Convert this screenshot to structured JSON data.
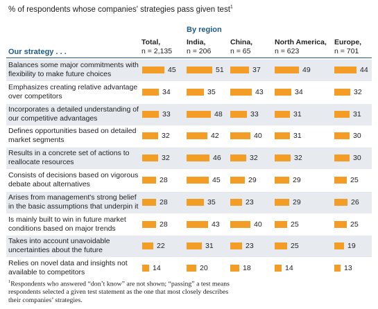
{
  "chart_data": {
    "type": "bar",
    "title": "% of respondents whose companies' strategies pass given test",
    "title_footnote_mark": "1",
    "region_header": "By region",
    "row_header": "Our strategy . . .",
    "columns": [
      {
        "name": "Total,",
        "n": "n = 2,135"
      },
      {
        "name": "India,",
        "n": "n = 206"
      },
      {
        "name": "China,",
        "n": "n = 65"
      },
      {
        "name": "North America,",
        "n": "n = 623"
      },
      {
        "name": "Europe,",
        "n": "n = 701"
      }
    ],
    "rows": [
      {
        "label": "Balances some major commitments with flexibility to make future choices",
        "values": [
          45,
          51,
          37,
          49,
          44
        ]
      },
      {
        "label": "Emphasizes creating relative advantage over competitors",
        "values": [
          34,
          35,
          43,
          34,
          32
        ]
      },
      {
        "label": "Incorporates a detailed understanding of our competitive advantages",
        "values": [
          33,
          48,
          33,
          31,
          31
        ]
      },
      {
        "label": "Defines opportunities based on detailed market segments",
        "values": [
          32,
          42,
          40,
          31,
          30
        ]
      },
      {
        "label": "Results in a concrete set of actions to reallocate resources",
        "values": [
          32,
          46,
          32,
          32,
          30
        ]
      },
      {
        "label": "Consists of decisions based on vigorous debate about alternatives",
        "values": [
          28,
          45,
          29,
          29,
          25
        ]
      },
      {
        "label": "Arises from management's strong belief in the basic assumptions that underpin it",
        "values": [
          28,
          35,
          23,
          29,
          26
        ]
      },
      {
        "label": "Is mainly built to win in future market conditions based on major trends",
        "values": [
          28,
          43,
          40,
          25,
          25
        ]
      },
      {
        "label": "Takes into account unavoidable uncertainties about the future",
        "values": [
          22,
          31,
          23,
          25,
          19
        ]
      },
      {
        "label": "Relies on novel data and insights not available to competitors",
        "values": [
          14,
          20,
          18,
          14,
          13
        ]
      }
    ],
    "bar_color": "#f39c26",
    "header_color": "#1e5a8c",
    "shade_color": "#e7eaef"
  },
  "footnote": {
    "mark": "1",
    "text": "Respondents who answered “don’t know” are not shown; “passing” a test means respondents selected a given test statement as the one that most closely describes their companies’ strategies."
  }
}
